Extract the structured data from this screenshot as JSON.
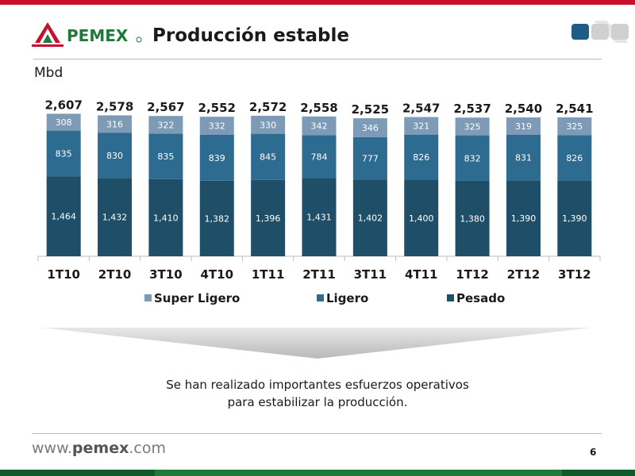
{
  "header": {
    "logo_text": "PEMEX",
    "title": "Producción estable"
  },
  "colors": {
    "accent_red": "#c8102e",
    "footer_green": "#1f7a3a",
    "pesado": "#1f4e69",
    "ligero": "#2d6b90",
    "super_ligero": "#7d9bb6"
  },
  "chart_data": {
    "type": "bar",
    "stacked": true,
    "unit": "Mbd",
    "categories": [
      "1T10",
      "2T10",
      "3T10",
      "4T10",
      "1T11",
      "2T11",
      "3T11",
      "4T11",
      "1T12",
      "2T12",
      "3T12"
    ],
    "series": [
      {
        "name": "Pesado",
        "values": [
          1464,
          1432,
          1410,
          1382,
          1396,
          1431,
          1402,
          1400,
          1380,
          1390,
          1390
        ],
        "labels": [
          "1,464",
          "1,432",
          "1,410",
          "1,382",
          "1,396",
          "1,431",
          "1,402",
          "1,400",
          "1,380",
          "1,390",
          "1,390"
        ]
      },
      {
        "name": "Ligero",
        "values": [
          835,
          830,
          835,
          839,
          845,
          784,
          777,
          826,
          832,
          831,
          826
        ],
        "labels": [
          "835",
          "830",
          "835",
          "839",
          "845",
          "784",
          "777",
          "826",
          "832",
          "831",
          "826"
        ]
      },
      {
        "name": "Super Ligero",
        "values": [
          308,
          316,
          322,
          332,
          330,
          342,
          346,
          321,
          325,
          319,
          325
        ],
        "labels": [
          "308",
          "316",
          "322",
          "332",
          "330",
          "342",
          "346",
          "321",
          "325",
          "319",
          "325"
        ]
      }
    ],
    "totals": [
      2607,
      2578,
      2567,
      2552,
      2572,
      2558,
      2525,
      2547,
      2537,
      2540,
      2541
    ],
    "total_labels": [
      "2,607",
      "2,578",
      "2,567",
      "2,552",
      "2,572",
      "2,558",
      "2,525",
      "2,547",
      "2,537",
      "2,540",
      "2,541"
    ],
    "legend": [
      {
        "name": "Super Ligero"
      },
      {
        "name": "Ligero"
      },
      {
        "name": "Pesado"
      }
    ],
    "legend_position": "bottom",
    "ylim": [
      0,
      2700
    ],
    "grid": false
  },
  "message": {
    "line1": "Se han realizado importantes esfuerzos operativos",
    "line2": "para estabilizar la producción."
  },
  "footer": {
    "url_prefix": "www.",
    "url_brand": "pemex",
    "url_suffix": ".com",
    "page_number": "6"
  }
}
